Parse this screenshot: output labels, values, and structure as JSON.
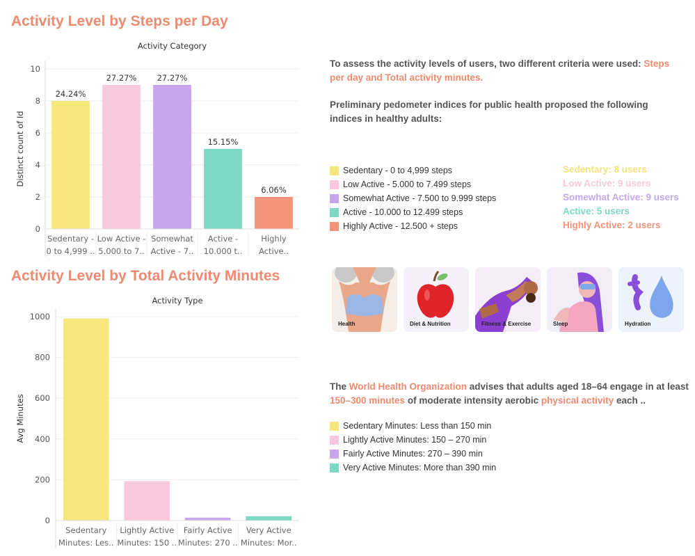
{
  "section1": {
    "title": "Activity Level by Steps per Day"
  },
  "section2": {
    "title": "Activity Level by Total Activity Minutes"
  },
  "chart_data": [
    {
      "type": "bar",
      "title": "Activity Category",
      "ylabel": "Distinct count of Id",
      "xlabel": "",
      "ylim": [
        0,
        10
      ],
      "yticks": [
        "0",
        "2",
        "4",
        "6",
        "8",
        "10"
      ],
      "grid": true,
      "categories": [
        [
          "Sedentary -",
          "0 to 4,999 .."
        ],
        [
          "Low Active -",
          "5.000  to 7.."
        ],
        [
          "Somewhat",
          "Active - 7.."
        ],
        [
          "Active -",
          "10.000 t.."
        ],
        [
          "Highly",
          "Active.."
        ]
      ],
      "values": [
        8,
        9,
        9,
        5,
        2
      ],
      "data_labels": [
        "24.24%",
        "27.27%",
        "27.27%",
        "15.15%",
        "6.06%"
      ],
      "colors": [
        "#f7e77d",
        "#f8c8dc",
        "#c7a6ec",
        "#7dd9c3",
        "#f2937a"
      ]
    },
    {
      "type": "bar",
      "title": "Activity Type",
      "ylabel": "Avg Minutes",
      "xlabel": "",
      "ylim": [
        0,
        1000
      ],
      "yticks": [
        "0",
        "200",
        "400",
        "600",
        "800",
        "1000"
      ],
      "grid": true,
      "categories": [
        [
          "Sedentary",
          "Minutes: Les.."
        ],
        [
          "Lightly Active",
          "Minutes: 150 .."
        ],
        [
          "Fairly Active",
          "Minutes: 270 .."
        ],
        [
          "Very Active",
          "Minutes: Mor.."
        ]
      ],
      "values": [
        991,
        193,
        14,
        21
      ],
      "colors": [
        "#f7e77d",
        "#f8c8dc",
        "#c7a6ec",
        "#7dd9c3"
      ]
    }
  ],
  "intro": {
    "text1": "To assess the activity levels of users, two different criteria were used: ",
    "hl1": "Steps per day and Total activity minutes.",
    "text2": "Preliminary pedometer indices for public health proposed the following indices in healthy adults:"
  },
  "steps_legend": [
    {
      "label": "Sedentary - 0 to 4,999 steps",
      "color": "#f7e77d"
    },
    {
      "label": "Low Active - 5.000  to 7.499 steps",
      "color": "#f8c8dc"
    },
    {
      "label": "Somewhat Active - 7.500 to 9.999 steps",
      "color": "#c7a6ec"
    },
    {
      "label": "Active - 10.000 to 12.499 steps",
      "color": "#7dd9c3"
    },
    {
      "label": "Highly Active - 12.500 + steps",
      "color": "#f2937a"
    }
  ],
  "user_counts": [
    {
      "label": "Sedentary: 8 users",
      "color": "#f5e27a"
    },
    {
      "label": "Low Active: 9 users",
      "color": "#f8c8dc"
    },
    {
      "label": "Somewhat Active: 9 users",
      "color": "#c7a6ec"
    },
    {
      "label": "Active: 5 users",
      "color": "#7dd9c3"
    },
    {
      "label": "Highly Active: 2 users",
      "color": "#f2937a"
    }
  ],
  "cards": [
    {
      "label": "Health",
      "icon": "health-icon"
    },
    {
      "label": "Diet & Nutrition",
      "icon": "apple-icon"
    },
    {
      "label": "Fitness & Exercise",
      "icon": "fitness-icon"
    },
    {
      "label": "Sleep",
      "icon": "sleep-icon"
    },
    {
      "label": "Hydration",
      "icon": "water-drop-icon"
    }
  ],
  "who": {
    "t1": "The ",
    "h1": "World Health Organization",
    "t2": " advises that adults aged 18–64 engage in at least ",
    "h2": "150–300 minutes",
    "t3": " of moderate intensity aerobic ",
    "h3": "physical activity",
    "t4": " each .."
  },
  "minutes_legend": [
    {
      "label": "Sedentary Minutes: Less than 150 min",
      "color": "#f7e77d"
    },
    {
      "label": "Lightly Active Minutes: 150 – 270 min",
      "color": "#f8c8dc"
    },
    {
      "label": "Fairly Active Minutes: 270 – 390 min",
      "color": "#c7a6ec"
    },
    {
      "label": "Very Active Minutes: More than 390 min",
      "color": "#7dd9c3"
    }
  ]
}
